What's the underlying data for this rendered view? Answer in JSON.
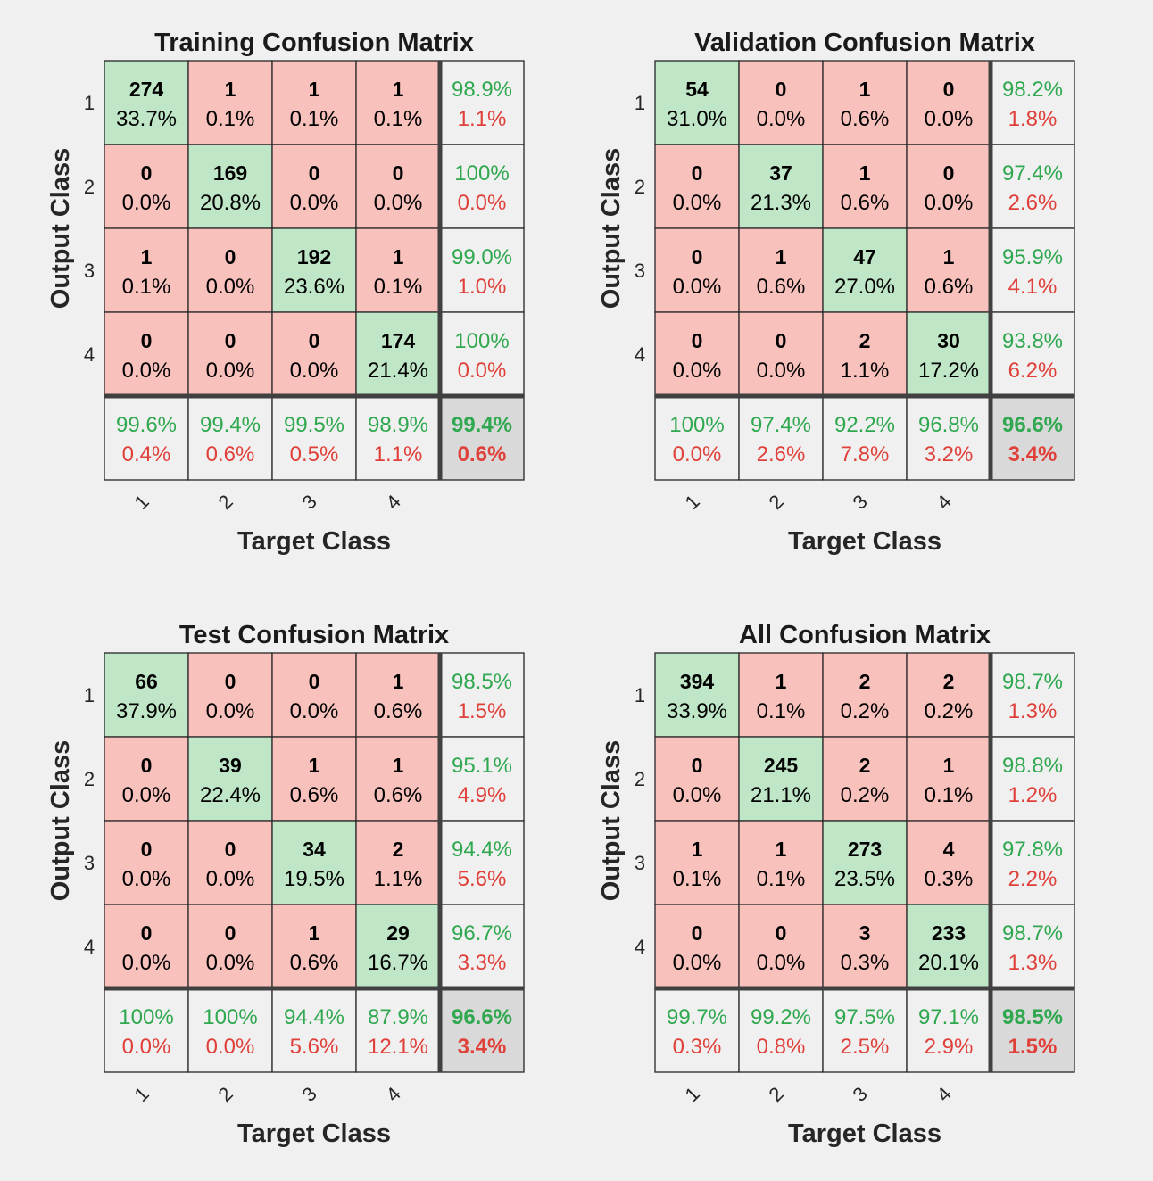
{
  "colors": {
    "background": "#f0f0f0",
    "correct_cell": "#bfe6c6",
    "error_cell": "#f8c1bc",
    "summary_cell": "#f0f0f0",
    "total_cell": "#d9d9d9",
    "grid_line": "#262626",
    "separator": "#404040",
    "good_text": "#2fa84f",
    "bad_text": "#e0403a"
  },
  "chart_data": [
    {
      "type": "heatmap",
      "title": "Training Confusion Matrix",
      "xlabel": "Target Class",
      "ylabel": "Output Class",
      "classes": [
        "1",
        "2",
        "3",
        "4"
      ],
      "counts": [
        [
          274,
          1,
          1,
          1
        ],
        [
          0,
          169,
          0,
          0
        ],
        [
          1,
          0,
          192,
          1
        ],
        [
          0,
          0,
          0,
          174
        ]
      ],
      "percents": [
        [
          "33.7%",
          "0.1%",
          "0.1%",
          "0.1%"
        ],
        [
          "0.0%",
          "20.8%",
          "0.0%",
          "0.0%"
        ],
        [
          "0.1%",
          "0.0%",
          "23.6%",
          "0.1%"
        ],
        [
          "0.0%",
          "0.0%",
          "0.0%",
          "21.4%"
        ]
      ],
      "row_summary": [
        [
          "98.9%",
          "1.1%"
        ],
        [
          "100%",
          "0.0%"
        ],
        [
          "99.0%",
          "1.0%"
        ],
        [
          "100%",
          "0.0%"
        ]
      ],
      "col_summary": [
        [
          "99.6%",
          "0.4%"
        ],
        [
          "99.4%",
          "0.6%"
        ],
        [
          "99.5%",
          "0.5%"
        ],
        [
          "98.9%",
          "1.1%"
        ]
      ],
      "overall": [
        "99.4%",
        "0.6%"
      ]
    },
    {
      "type": "heatmap",
      "title": "Validation Confusion Matrix",
      "xlabel": "Target Class",
      "ylabel": "Output Class",
      "classes": [
        "1",
        "2",
        "3",
        "4"
      ],
      "counts": [
        [
          54,
          0,
          1,
          0
        ],
        [
          0,
          37,
          1,
          0
        ],
        [
          0,
          1,
          47,
          1
        ],
        [
          0,
          0,
          2,
          30
        ]
      ],
      "percents": [
        [
          "31.0%",
          "0.0%",
          "0.6%",
          "0.0%"
        ],
        [
          "0.0%",
          "21.3%",
          "0.6%",
          "0.0%"
        ],
        [
          "0.0%",
          "0.6%",
          "27.0%",
          "0.6%"
        ],
        [
          "0.0%",
          "0.0%",
          "1.1%",
          "17.2%"
        ]
      ],
      "row_summary": [
        [
          "98.2%",
          "1.8%"
        ],
        [
          "97.4%",
          "2.6%"
        ],
        [
          "95.9%",
          "4.1%"
        ],
        [
          "93.8%",
          "6.2%"
        ]
      ],
      "col_summary": [
        [
          "100%",
          "0.0%"
        ],
        [
          "97.4%",
          "2.6%"
        ],
        [
          "92.2%",
          "7.8%"
        ],
        [
          "96.8%",
          "3.2%"
        ]
      ],
      "overall": [
        "96.6%",
        "3.4%"
      ]
    },
    {
      "type": "heatmap",
      "title": "Test Confusion Matrix",
      "xlabel": "Target Class",
      "ylabel": "Output Class",
      "classes": [
        "1",
        "2",
        "3",
        "4"
      ],
      "counts": [
        [
          66,
          0,
          0,
          1
        ],
        [
          0,
          39,
          1,
          1
        ],
        [
          0,
          0,
          34,
          2
        ],
        [
          0,
          0,
          1,
          29
        ]
      ],
      "percents": [
        [
          "37.9%",
          "0.0%",
          "0.0%",
          "0.6%"
        ],
        [
          "0.0%",
          "22.4%",
          "0.6%",
          "0.6%"
        ],
        [
          "0.0%",
          "0.0%",
          "19.5%",
          "1.1%"
        ],
        [
          "0.0%",
          "0.0%",
          "0.6%",
          "16.7%"
        ]
      ],
      "row_summary": [
        [
          "98.5%",
          "1.5%"
        ],
        [
          "95.1%",
          "4.9%"
        ],
        [
          "94.4%",
          "5.6%"
        ],
        [
          "96.7%",
          "3.3%"
        ]
      ],
      "col_summary": [
        [
          "100%",
          "0.0%"
        ],
        [
          "100%",
          "0.0%"
        ],
        [
          "94.4%",
          "5.6%"
        ],
        [
          "87.9%",
          "12.1%"
        ]
      ],
      "overall": [
        "96.6%",
        "3.4%"
      ]
    },
    {
      "type": "heatmap",
      "title": "All Confusion Matrix",
      "xlabel": "Target Class",
      "ylabel": "Output Class",
      "classes": [
        "1",
        "2",
        "3",
        "4"
      ],
      "counts": [
        [
          394,
          1,
          2,
          2
        ],
        [
          0,
          245,
          2,
          1
        ],
        [
          1,
          1,
          273,
          4
        ],
        [
          0,
          0,
          3,
          233
        ]
      ],
      "percents": [
        [
          "33.9%",
          "0.1%",
          "0.2%",
          "0.2%"
        ],
        [
          "0.0%",
          "21.1%",
          "0.2%",
          "0.1%"
        ],
        [
          "0.1%",
          "0.1%",
          "23.5%",
          "0.3%"
        ],
        [
          "0.0%",
          "0.0%",
          "0.3%",
          "20.1%"
        ]
      ],
      "row_summary": [
        [
          "98.7%",
          "1.3%"
        ],
        [
          "98.8%",
          "1.2%"
        ],
        [
          "97.8%",
          "2.2%"
        ],
        [
          "98.7%",
          "1.3%"
        ]
      ],
      "col_summary": [
        [
          "99.7%",
          "0.3%"
        ],
        [
          "99.2%",
          "0.8%"
        ],
        [
          "97.5%",
          "2.5%"
        ],
        [
          "97.1%",
          "2.9%"
        ]
      ],
      "overall": [
        "98.5%",
        "1.5%"
      ]
    }
  ]
}
